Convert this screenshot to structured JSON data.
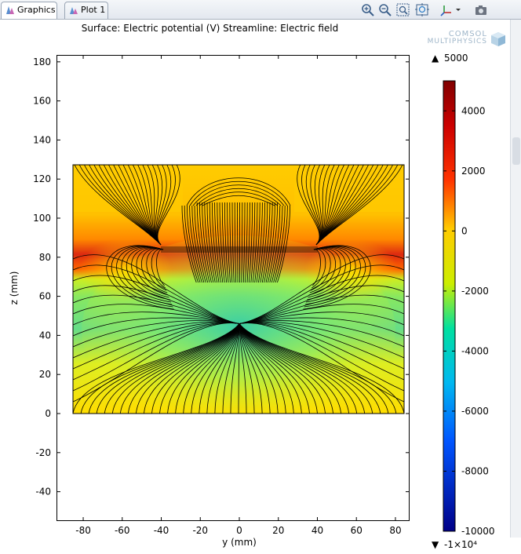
{
  "tabs": [
    {
      "label": "Graphics",
      "icon": "graphics-icon",
      "active": true
    },
    {
      "label": "Plot 1",
      "icon": "plot-icon",
      "active": false
    }
  ],
  "toolbar": [
    "zoom-in-icon",
    "zoom-out-icon",
    "zoom-box-icon",
    "zoom-extents-icon",
    "axis-orientation-icon",
    "dropdown-arrow-icon",
    "camera-icon"
  ],
  "plot": {
    "title": "Surface: Electric potential (V) Streamline: Electric field",
    "xlabel": "y (mm)",
    "ylabel": "z (mm)",
    "xticks": [
      "-80",
      "-60",
      "-40",
      "-20",
      "0",
      "20",
      "40",
      "60",
      "80"
    ],
    "yticks": [
      "180",
      "160",
      "140",
      "120",
      "100",
      "80",
      "60",
      "40",
      "20",
      "0",
      "-20",
      "-40"
    ]
  },
  "logo": {
    "line1": "COMSOL",
    "line2": "MULTIPHYSICS"
  },
  "colorbar": {
    "max_label": "5000",
    "min_label": "-1×10⁴",
    "max_symbol": "▲",
    "min_symbol": "▼",
    "ticks": [
      "4000",
      "2000",
      "0",
      "-2000",
      "-4000",
      "-6000",
      "-8000",
      "-10000"
    ],
    "colormap": "rainbow"
  },
  "chart_data": {
    "type": "heatmap",
    "title": "Surface: Electric potential (V) Streamline: Electric field",
    "xlabel": "y (mm)",
    "ylabel": "z (mm)",
    "xlim": [
      -93,
      88
    ],
    "ylim": [
      -55,
      183
    ],
    "domain": {
      "y": [
        -85,
        85
      ],
      "z": [
        0,
        128
      ]
    },
    "color_range": [
      -10000,
      5000
    ],
    "hot_electrode_band_z_mm": [
      78,
      100
    ],
    "field_convergence_point_mm": {
      "y": 0,
      "z": 46
    }
  }
}
